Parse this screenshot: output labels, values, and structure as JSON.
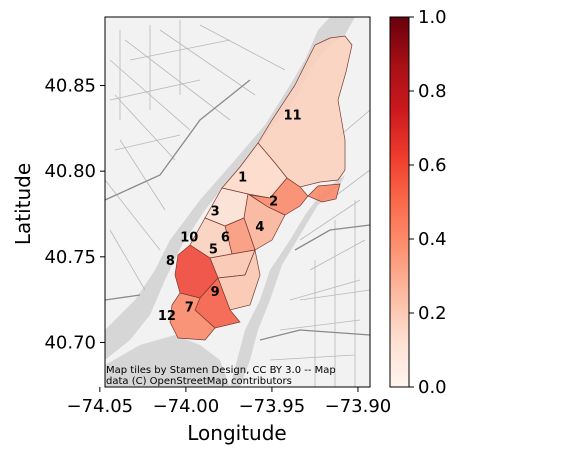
{
  "chart_data": {
    "type": "choropleth map",
    "xlabel": "Longitude",
    "ylabel": "Latitude",
    "x_ticks": [
      "−74.05",
      "−74.00",
      "−73.95",
      "−73.90"
    ],
    "x_tick_values": [
      -74.05,
      -74.0,
      -73.95,
      -73.9
    ],
    "y_ticks": [
      "40.70",
      "40.75",
      "40.80",
      "40.85"
    ],
    "y_tick_values": [
      40.7,
      40.75,
      40.8,
      40.85
    ],
    "xlim": [
      -74.047,
      -73.893
    ],
    "ylim": [
      40.674,
      40.89
    ],
    "attribution": [
      "Map tiles by Stamen Design, CC BY 3.0 -- Map",
      "data (C) OpenStreetMap contributors"
    ],
    "colorbar": {
      "colormap": "Reds",
      "range": [
        0.0,
        1.0
      ],
      "ticks": [
        "0.0",
        "0.2",
        "0.4",
        "0.6",
        "0.8",
        "1.0"
      ],
      "tick_values": [
        0.0,
        0.2,
        0.4,
        0.6,
        0.8,
        1.0
      ]
    },
    "regions": [
      {
        "label": "1",
        "value": 0.15,
        "center": [
          -73.967,
          40.797
        ]
      },
      {
        "label": "2",
        "value": 0.42,
        "center": [
          -73.949,
          40.783
        ]
      },
      {
        "label": "3",
        "value": 0.12,
        "center": [
          -73.983,
          40.777
        ]
      },
      {
        "label": "4",
        "value": 0.28,
        "center": [
          -73.957,
          40.768
        ]
      },
      {
        "label": "5",
        "value": 0.22,
        "center": [
          -73.984,
          40.755
        ]
      },
      {
        "label": "6",
        "value": 0.37,
        "center": [
          -73.977,
          40.762
        ]
      },
      {
        "label": "7",
        "value": 0.55,
        "center": [
          -73.998,
          40.721
        ]
      },
      {
        "label": "8",
        "value": 0.62,
        "center": [
          -74.009,
          40.748
        ]
      },
      {
        "label": "9",
        "value": 0.22,
        "center": [
          -73.983,
          40.73
        ]
      },
      {
        "label": "10",
        "value": 0.18,
        "center": [
          -73.998,
          40.762
        ]
      },
      {
        "label": "11",
        "value": 0.18,
        "center": [
          -73.938,
          40.833
        ]
      },
      {
        "label": "12",
        "value": 0.42,
        "center": [
          -74.011,
          40.716
        ]
      }
    ]
  }
}
